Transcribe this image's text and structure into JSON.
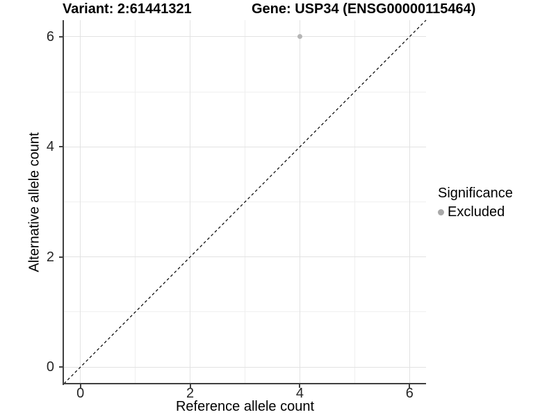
{
  "chart_data": {
    "type": "scatter",
    "title_left": "Variant: 2:61441321",
    "title_right": "Gene: USP34 (ENSG00000115464)",
    "xlabel": "Reference allele count",
    "ylabel": "Alternative allele count",
    "xlim": [
      -0.3,
      6.3
    ],
    "ylim": [
      -0.3,
      6.3
    ],
    "x_major_ticks": [
      0,
      2,
      4,
      6
    ],
    "y_major_ticks": [
      0,
      2,
      4,
      6
    ],
    "x_minor_gridlines": [
      1,
      3,
      5
    ],
    "y_minor_gridlines": [
      1,
      3,
      5
    ],
    "grid": true,
    "background_color": "#ffffff",
    "gridline_color": "#e4e4e4",
    "axis_line_color": "#404040",
    "identity_line": {
      "style": "dashed",
      "color": "#000000",
      "x1": -0.3,
      "y1": -0.3,
      "x2": 6.3,
      "y2": 6.3
    },
    "series": [
      {
        "name": "Excluded",
        "color": "#b5b5b5",
        "points": [
          {
            "x": 4,
            "y": 6
          }
        ]
      }
    ],
    "legend": {
      "title": "Significance",
      "position": "right",
      "items": [
        {
          "label": "Excluded",
          "color": "#a9a9a9",
          "marker": "circle"
        }
      ]
    }
  }
}
